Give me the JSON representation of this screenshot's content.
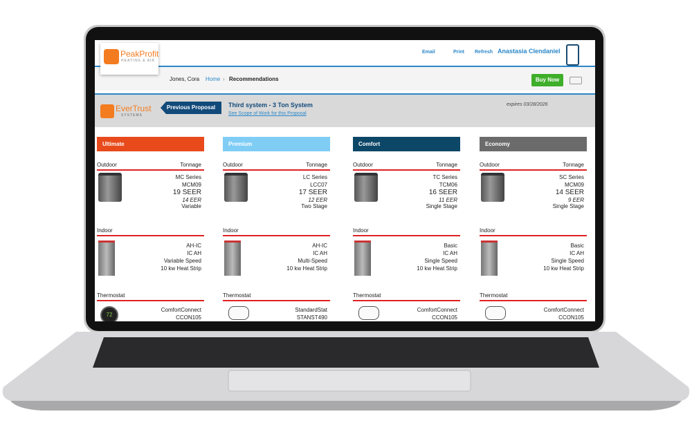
{
  "header": {
    "logo": {
      "name": "PeakProfit",
      "tagline": "HEATING & AIR"
    },
    "links": [
      "Email",
      "Print",
      "Refresh"
    ],
    "user": "Anastasia Clendaniel"
  },
  "breadcrumb": {
    "customer": "Jones, Cora",
    "items": [
      "Home",
      "Recommendations"
    ]
  },
  "buy_now": "Buy Now",
  "proposal": {
    "brand": "EverTrust",
    "brand_tagline": "SYSTEMS",
    "previous": "Previous Proposal",
    "title": "Third system - 3 Ton System",
    "scope_link": "See Scope of Work for this Proposal",
    "expires": "expires 03/28/2026"
  },
  "tiers": [
    {
      "name": "Ultimate",
      "color": "#e84a1c",
      "outdoor_label": "Outdoor",
      "tonnage_label": "Tonnage",
      "outdoor": [
        "MC Series",
        "MCM09",
        "19 SEER",
        "14 EER",
        "Variable"
      ],
      "indoor_label": "Indoor",
      "indoor": [
        "AH-IC",
        "IC AH",
        "Variable Speed",
        "10 kw  Heat Strip"
      ],
      "thermostat_label": "Thermostat",
      "thermostat": [
        "ComfortConnect",
        "CCON105"
      ],
      "thermostat_display": "72"
    },
    {
      "name": "Premium",
      "color": "#7fcdf5",
      "outdoor_label": "Outdoor",
      "tonnage_label": "Tonnage",
      "outdoor": [
        "LC Series",
        "LCC07",
        "17 SEER",
        "12 EER",
        "Two Stage"
      ],
      "indoor_label": "Indoor",
      "indoor": [
        "AH-IC",
        "IC AH",
        "Multi-Speed",
        "10 kw  Heat Strip"
      ],
      "thermostat_label": "Thermostat",
      "thermostat": [
        "StandardStat",
        "STANST490"
      ]
    },
    {
      "name": "Comfort",
      "color": "#0d4767",
      "outdoor_label": "Outdoor",
      "tonnage_label": "Tonnage",
      "outdoor": [
        "TC Series",
        "TCM06",
        "16 SEER",
        "11 EER",
        "Single Stage"
      ],
      "indoor_label": "Indoor",
      "indoor": [
        "Basic",
        "IC AH",
        "Single Speed",
        "10 kw  Heat Strip"
      ],
      "thermostat_label": "Thermostat",
      "thermostat": [
        "ComfortConnect",
        "CCON105"
      ]
    },
    {
      "name": "Economy",
      "color": "#6b6b6b",
      "outdoor_label": "Outdoor",
      "tonnage_label": "Tonnage",
      "outdoor": [
        "SC Series",
        "MCM09",
        "14 SEER",
        "9 EER",
        "Single Stage"
      ],
      "indoor_label": "Indoor",
      "indoor": [
        "Basic",
        "IC AH",
        "Single Speed",
        "10 kw  Heat Strip"
      ],
      "thermostat_label": "Thermostat",
      "thermostat": [
        "ComfortConnect",
        "CCON105"
      ]
    }
  ]
}
